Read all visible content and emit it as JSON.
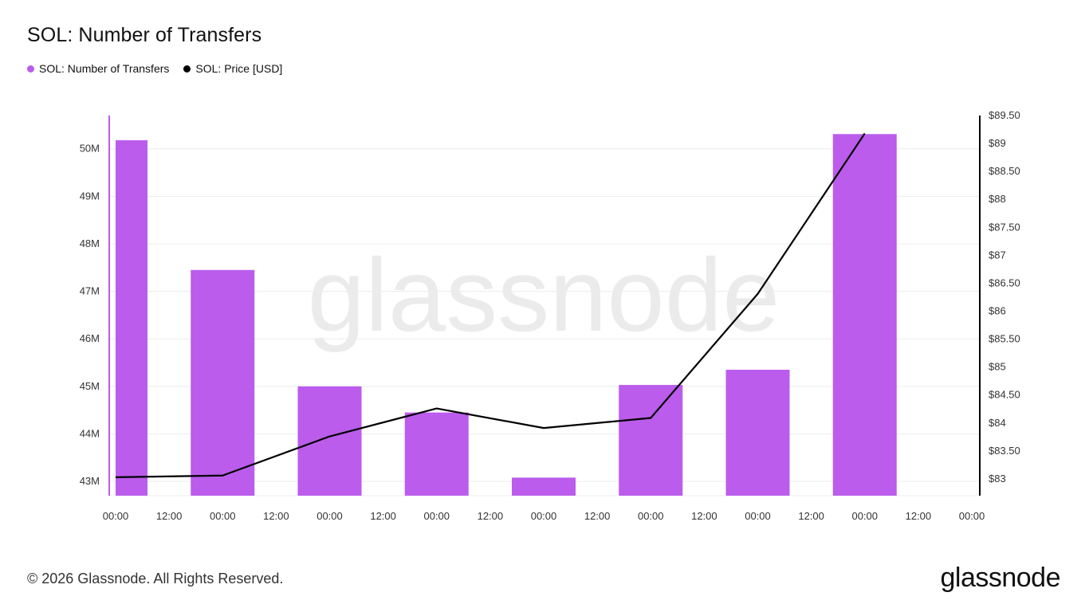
{
  "title": "SOL: Number of Transfers",
  "legend": [
    {
      "label": "SOL: Number of Transfers",
      "color": "#bb5cec"
    },
    {
      "label": "SOL: Price [USD]",
      "color": "#000000"
    }
  ],
  "watermark": "glassnode",
  "footer": {
    "copyright": "© 2026 Glassnode. All Rights Reserved.",
    "logo": "glassnode"
  },
  "chart_data": {
    "type": "bar",
    "x_tick_labels": [
      "00:00",
      "12:00",
      "00:00",
      "12:00",
      "00:00",
      "12:00",
      "00:00",
      "12:00",
      "00:00",
      "12:00",
      "00:00",
      "12:00",
      "00:00",
      "12:00",
      "00:00",
      "12:00",
      "00:00"
    ],
    "y_left": {
      "ticks": [
        43000000,
        44000000,
        45000000,
        46000000,
        47000000,
        48000000,
        49000000,
        50000000
      ],
      "tick_labels": [
        "43M",
        "44M",
        "45M",
        "46M",
        "47M",
        "48M",
        "49M",
        "50M"
      ],
      "range": [
        42700000,
        50700000
      ]
    },
    "y_right": {
      "ticks": [
        83,
        83.5,
        84,
        84.5,
        85,
        85.5,
        86,
        86.5,
        87,
        87.5,
        88,
        88.5,
        89,
        89.5
      ],
      "tick_labels": [
        "$83",
        "$83.50",
        "$84",
        "$84.50",
        "$85",
        "$85.50",
        "$86",
        "$86.50",
        "$87",
        "$87.50",
        "$88",
        "$88.50",
        "$89",
        "$89.50"
      ],
      "range": [
        82.7,
        89.5
      ]
    },
    "series": [
      {
        "name": "SOL: Number of Transfers",
        "type": "bar",
        "axis": "left",
        "color": "#bb5cec",
        "values": [
          50180000,
          47450000,
          45000000,
          44450000,
          43080000,
          45030000,
          45350000,
          50310000
        ]
      },
      {
        "name": "SOL: Price [USD]",
        "type": "line",
        "axis": "right",
        "color": "#000000",
        "values": [
          83.03,
          83.06,
          83.76,
          84.26,
          83.91,
          84.09,
          86.31,
          89.18
        ]
      }
    ],
    "grid": true,
    "legend_position": "top-left"
  }
}
